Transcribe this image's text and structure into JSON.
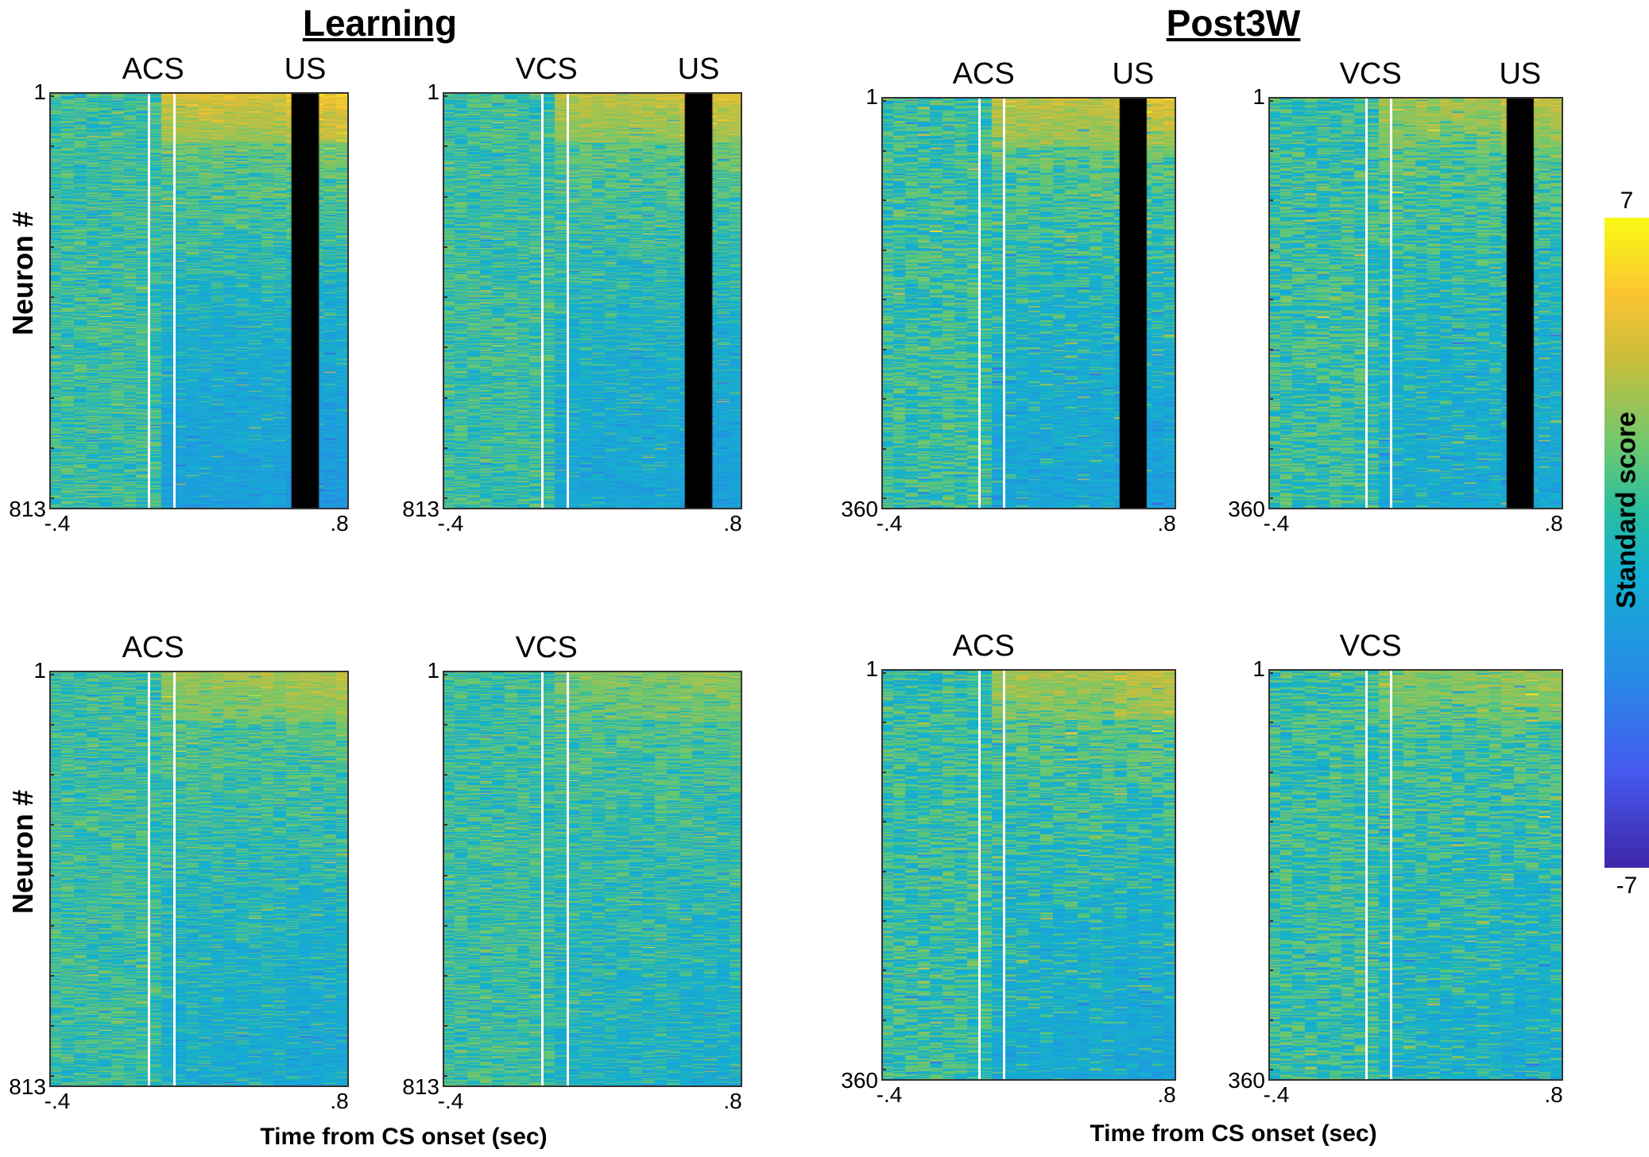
{
  "chart_data": {
    "type": "heatmap",
    "groups": [
      {
        "title": "Learning",
        "xlabel": "Time from CS onset (sec)"
      },
      {
        "title": "Post3W",
        "xlabel": "Time from CS onset (sec)"
      }
    ],
    "ylabel": "Neuron #",
    "colorbar": {
      "label": "Standard score",
      "min": -7,
      "max": 7,
      "min_label": "-7",
      "max_label": "7",
      "colormap": "parula"
    },
    "panels": [
      {
        "group": "Learning",
        "row": "top",
        "cs_label": "ACS",
        "us_label": "US",
        "n_neurons": 813,
        "ytick_top": "1",
        "ytick_bottom": "813",
        "xlim": [
          -0.4,
          0.8
        ],
        "xtick_left": "-.4",
        "xtick_right": ".8",
        "cs_lines": [
          0,
          0.1
        ],
        "us_block": [
          0.57,
          0.68
        ],
        "response": 1.0
      },
      {
        "group": "Learning",
        "row": "top",
        "cs_label": "VCS",
        "us_label": "US",
        "n_neurons": 813,
        "ytick_top": "1",
        "ytick_bottom": "813",
        "xlim": [
          -0.4,
          0.8
        ],
        "xtick_left": "-.4",
        "xtick_right": ".8",
        "cs_lines": [
          0,
          0.1
        ],
        "us_block": [
          0.57,
          0.68
        ],
        "response": 0.8
      },
      {
        "group": "Post3W",
        "row": "top",
        "cs_label": "ACS",
        "us_label": "US",
        "n_neurons": 360,
        "ytick_top": "1",
        "ytick_bottom": "360",
        "xlim": [
          -0.4,
          0.8
        ],
        "xtick_left": "-.4",
        "xtick_right": ".8",
        "cs_lines": [
          0,
          0.1
        ],
        "us_block": [
          0.57,
          0.68
        ],
        "response": 0.8
      },
      {
        "group": "Post3W",
        "row": "top",
        "cs_label": "VCS",
        "us_label": "US",
        "n_neurons": 360,
        "ytick_top": "1",
        "ytick_bottom": "360",
        "xlim": [
          -0.4,
          0.8
        ],
        "xtick_left": "-.4",
        "xtick_right": ".8",
        "cs_lines": [
          0,
          0.1
        ],
        "us_block": [
          0.57,
          0.68
        ],
        "response": 0.6
      },
      {
        "group": "Learning",
        "row": "bottom",
        "cs_label": "ACS",
        "n_neurons": 813,
        "ytick_top": "1",
        "ytick_bottom": "813",
        "xlim": [
          -0.4,
          0.8
        ],
        "xtick_left": "-.4",
        "xtick_right": ".8",
        "cs_lines": [
          0,
          0.1
        ],
        "response": 0.55
      },
      {
        "group": "Learning",
        "row": "bottom",
        "cs_label": "VCS",
        "n_neurons": 813,
        "ytick_top": "1",
        "ytick_bottom": "813",
        "xlim": [
          -0.4,
          0.8
        ],
        "xtick_left": "-.4",
        "xtick_right": ".8",
        "cs_lines": [
          0,
          0.1
        ],
        "response": 0.35
      },
      {
        "group": "Post3W",
        "row": "bottom",
        "cs_label": "ACS",
        "n_neurons": 360,
        "ytick_top": "1",
        "ytick_bottom": "360",
        "xlim": [
          -0.4,
          0.8
        ],
        "xtick_left": "-.4",
        "xtick_right": ".8",
        "cs_lines": [
          0,
          0.1
        ],
        "response": 0.6
      },
      {
        "group": "Post3W",
        "row": "bottom",
        "cs_label": "VCS",
        "n_neurons": 360,
        "ytick_top": "1",
        "ytick_bottom": "360",
        "xlim": [
          -0.4,
          0.8
        ],
        "xtick_left": "-.4",
        "xtick_right": ".8",
        "cs_lines": [
          0,
          0.1
        ],
        "response": 0.4
      }
    ]
  }
}
